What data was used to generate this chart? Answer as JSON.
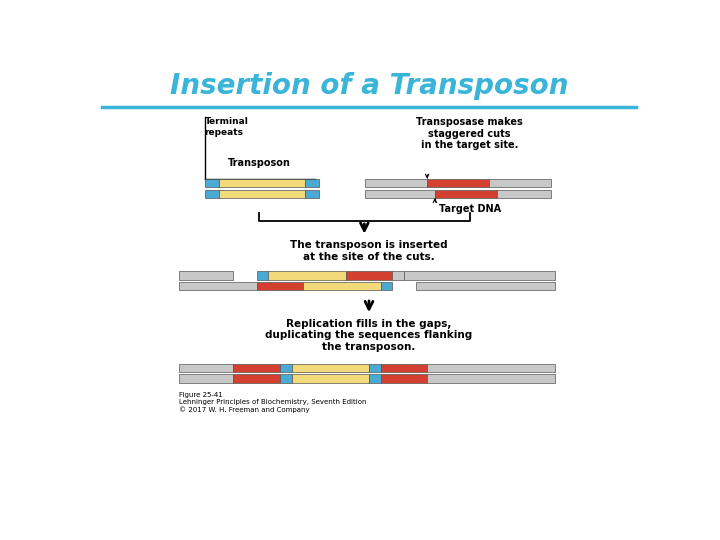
{
  "title": "Insertion of a Transposon",
  "title_color": "#3ab4d8",
  "title_fontsize": 20,
  "bg_color": "#ffffff",
  "divider_color": "#3ab4d8",
  "colors": {
    "gray": "#c8c8c8",
    "yellow": "#f2d97a",
    "blue": "#4baad3",
    "red": "#d44030"
  },
  "labels": {
    "terminal_repeats": "Terminal\nrepeats",
    "transposon": "Transposon",
    "transposase_text": "Transposase makes\nstaggered cuts\nin the target site.",
    "target_dna": "Target DNA",
    "inserted_text": "The transposon is inserted\nat the site of the cuts.",
    "replication_text": "Replication fills in the gaps,\nduplicating the sequences flanking\nthe transposon.",
    "figure_note": "Figure 25-41\nLehninger Principles of Biochemistry, Seventh Edition\n© 2017 W. H. Freeman and Company"
  }
}
